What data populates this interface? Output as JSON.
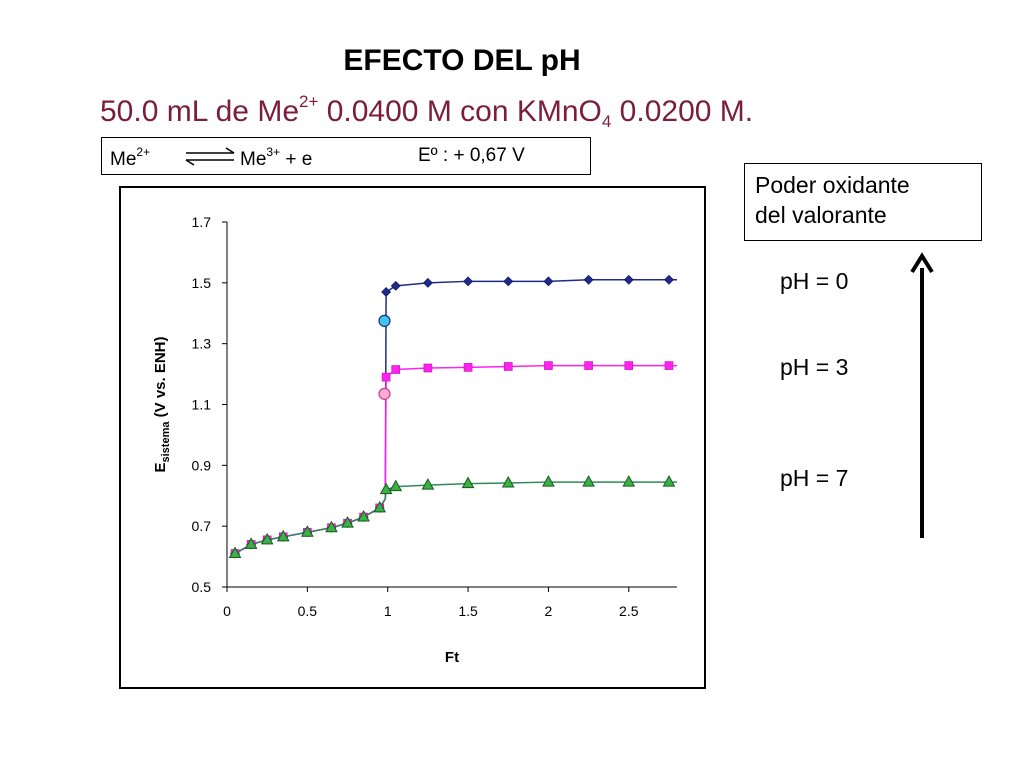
{
  "title": "EFECTO DEL pH",
  "subtitle": {
    "prefix": "50.0 mL de Me",
    "charge": "2+",
    "middle": " 0.0400 M con KMnO",
    "subscript": "4",
    "suffix": " 0.0200 M."
  },
  "reaction": {
    "reactant": "Me",
    "reactant_charge": "2+",
    "product": "Me",
    "product_charge": "3+",
    "product_tail": " + e",
    "potential": "Eº : + 0,67 V"
  },
  "note": {
    "line1": "Poder oxidante",
    "line2": "del valorante"
  },
  "ph_labels": [
    "pH = 0",
    "pH = 3",
    "pH = 7"
  ],
  "chart_data": {
    "type": "line",
    "xlabel": "Ft",
    "ylabel_main": "E",
    "ylabel_sub": "sistema",
    "ylabel_tail": " (V vs. ENH)",
    "xlim": [
      0,
      2.8
    ],
    "ylim": [
      0.5,
      1.7
    ],
    "x_ticks": [
      0,
      0.5,
      1,
      1.5,
      2,
      2.5
    ],
    "x_tick_labels": [
      "0",
      "0.5",
      "1",
      "1.5",
      "2",
      "2.5"
    ],
    "y_ticks": [
      0.5,
      0.7,
      0.9,
      1.1,
      1.3,
      1.5,
      1.7
    ],
    "y_tick_labels": [
      "0.5",
      "0.7",
      "0.9",
      "1.1",
      "1.3",
      "1.5",
      "1.7"
    ],
    "grid": false,
    "legend": "none",
    "common_points": {
      "x": [
        0.05,
        0.15,
        0.25,
        0.35,
        0.5,
        0.65,
        0.75,
        0.85,
        0.95
      ],
      "y": [
        0.61,
        0.64,
        0.655,
        0.665,
        0.68,
        0.695,
        0.71,
        0.73,
        0.76
      ]
    },
    "series": [
      {
        "color": "#1f2a8c",
        "marker": "diamond",
        "x": [
          0.99,
          1.05,
          1.25,
          1.5,
          1.75,
          2.0,
          2.25,
          2.5,
          2.75
        ],
        "y": [
          1.47,
          1.49,
          1.5,
          1.505,
          1.505,
          1.505,
          1.51,
          1.51,
          1.51
        ],
        "equivalence_point": {
          "x": 0.98,
          "y": 1.375,
          "color": "#3ec8ec"
        }
      },
      {
        "color": "#ff22ee",
        "marker": "square",
        "x": [
          0.99,
          1.05,
          1.25,
          1.5,
          1.75,
          2.0,
          2.25,
          2.5,
          2.75
        ],
        "y": [
          1.19,
          1.215,
          1.22,
          1.222,
          1.225,
          1.228,
          1.228,
          1.228,
          1.228
        ],
        "equivalence_point": {
          "x": 0.98,
          "y": 1.135,
          "color": "#ffaad0"
        }
      },
      {
        "color": "#2e8b57",
        "marker": "triangle",
        "x": [
          0.99,
          1.05,
          1.25,
          1.5,
          1.75,
          2.0,
          2.25,
          2.5,
          2.75
        ],
        "y": [
          0.82,
          0.83,
          0.835,
          0.84,
          0.842,
          0.845,
          0.845,
          0.845,
          0.845
        ],
        "equivalence_point": null
      }
    ]
  }
}
